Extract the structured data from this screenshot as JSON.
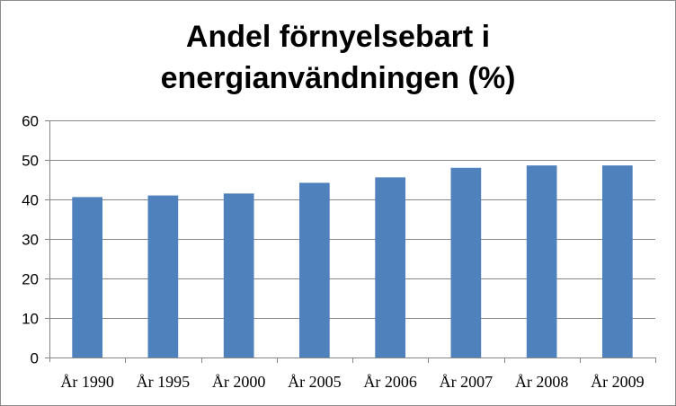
{
  "chart_data": {
    "type": "bar",
    "title_lines": [
      "Andel förnyelsebart i",
      "energianvändningen (%)"
    ],
    "categories": [
      "År 1990",
      "År 1995",
      "År 2000",
      "År 2005",
      "År 2006",
      "År 2007",
      "År 2008",
      "År 2009"
    ],
    "values": [
      40.6,
      41.0,
      41.5,
      44.2,
      45.6,
      48.0,
      48.6,
      48.6
    ],
    "ylim": [
      0,
      60
    ],
    "yticks": [
      "0",
      "10",
      "20",
      "30",
      "40",
      "50",
      "60"
    ],
    "xlabel": "",
    "ylabel": "",
    "grid": true,
    "legend": false,
    "colors": {
      "bar": "#4f81bd",
      "grid": "#868686",
      "axis": "#868686"
    }
  }
}
